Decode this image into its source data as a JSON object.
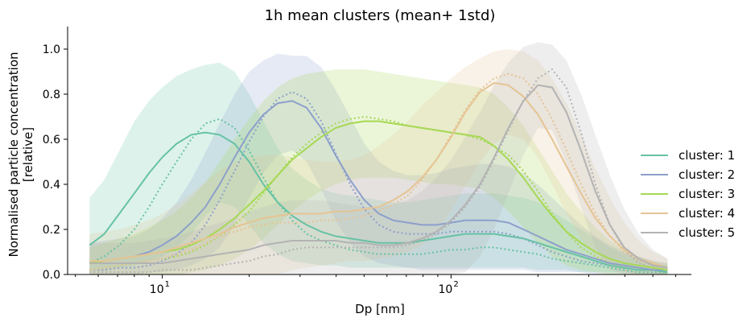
{
  "chart_data": {
    "type": "line",
    "title": "1h mean clusters (mean+ 1std)",
    "xlabel": "Dp [nm]",
    "ylabel_line1": "Normalised particle concentration",
    "ylabel_line2": "[relative]",
    "xscale": "log",
    "xlim": [
      4.7,
      680
    ],
    "ylim": [
      0,
      1.1
    ],
    "yticks": [
      0.0,
      0.2,
      0.4,
      0.6,
      0.8,
      1.0
    ],
    "ytick_labels": [
      "0.0",
      "0.2",
      "0.4",
      "0.6",
      "0.8",
      "1.0"
    ],
    "xtick_labels": [
      {
        "value": 10,
        "base": "10",
        "exp": "1"
      },
      {
        "value": 100,
        "base": "10",
        "exp": "2"
      }
    ],
    "grid": false,
    "legend_position": "right",
    "x": [
      5.6,
      6.3,
      7.1,
      8.0,
      9.0,
      10.0,
      11.2,
      12.6,
      14.1,
      15.8,
      17.8,
      20.0,
      22.4,
      25.1,
      28.2,
      31.6,
      35.5,
      39.8,
      44.7,
      50.1,
      56.2,
      63.1,
      70.8,
      79.4,
      89.1,
      100,
      112,
      126,
      141,
      158,
      178,
      200,
      224,
      251,
      282,
      316,
      355,
      398,
      447,
      501,
      562
    ],
    "series": [
      {
        "name": "cluster: 1",
        "color": "#66c2a5",
        "mean": [
          0.13,
          0.18,
          0.27,
          0.36,
          0.45,
          0.52,
          0.58,
          0.62,
          0.63,
          0.62,
          0.58,
          0.5,
          0.4,
          0.32,
          0.26,
          0.22,
          0.19,
          0.17,
          0.16,
          0.15,
          0.14,
          0.14,
          0.14,
          0.15,
          0.16,
          0.17,
          0.18,
          0.18,
          0.18,
          0.17,
          0.16,
          0.14,
          0.12,
          0.1,
          0.08,
          0.06,
          0.04,
          0.03,
          0.02,
          0.02,
          0.01
        ],
        "median": [
          0.05,
          0.08,
          0.13,
          0.2,
          0.3,
          0.4,
          0.5,
          0.6,
          0.67,
          0.69,
          0.65,
          0.55,
          0.43,
          0.32,
          0.24,
          0.18,
          0.15,
          0.13,
          0.11,
          0.1,
          0.09,
          0.09,
          0.09,
          0.09,
          0.1,
          0.11,
          0.11,
          0.12,
          0.12,
          0.11,
          0.1,
          0.09,
          0.07,
          0.06,
          0.05,
          0.04,
          0.03,
          0.02,
          0.01,
          0.01,
          0.01
        ],
        "upper": [
          0.34,
          0.42,
          0.55,
          0.68,
          0.77,
          0.83,
          0.88,
          0.91,
          0.93,
          0.94,
          0.9,
          0.8,
          0.68,
          0.56,
          0.47,
          0.42,
          0.38,
          0.36,
          0.35,
          0.34,
          0.33,
          0.32,
          0.32,
          0.33,
          0.34,
          0.35,
          0.36,
          0.36,
          0.36,
          0.35,
          0.34,
          0.32,
          0.28,
          0.24,
          0.2,
          0.16,
          0.12,
          0.09,
          0.07,
          0.05,
          0.04
        ],
        "lower": [
          0.02,
          0.02,
          0.03,
          0.04,
          0.06,
          0.08,
          0.12,
          0.18,
          0.26,
          0.32,
          0.3,
          0.22,
          0.14,
          0.09,
          0.06,
          0.05,
          0.04,
          0.04,
          0.03,
          0.03,
          0.03,
          0.03,
          0.03,
          0.03,
          0.03,
          0.03,
          0.03,
          0.03,
          0.03,
          0.03,
          0.03,
          0.02,
          0.02,
          0.02,
          0.01,
          0.01,
          0.01,
          0.01,
          0.0,
          0.0,
          0.0
        ]
      },
      {
        "name": "cluster: 2",
        "color": "#8da0cb",
        "mean": [
          0.05,
          0.06,
          0.07,
          0.08,
          0.1,
          0.13,
          0.17,
          0.23,
          0.3,
          0.4,
          0.52,
          0.63,
          0.71,
          0.76,
          0.77,
          0.74,
          0.65,
          0.53,
          0.42,
          0.33,
          0.27,
          0.24,
          0.23,
          0.22,
          0.22,
          0.23,
          0.24,
          0.24,
          0.24,
          0.23,
          0.2,
          0.17,
          0.14,
          0.11,
          0.09,
          0.07,
          0.05,
          0.04,
          0.03,
          0.02,
          0.02
        ],
        "median": [
          0.02,
          0.02,
          0.03,
          0.03,
          0.04,
          0.06,
          0.09,
          0.14,
          0.22,
          0.33,
          0.46,
          0.59,
          0.7,
          0.78,
          0.81,
          0.78,
          0.68,
          0.54,
          0.4,
          0.29,
          0.22,
          0.19,
          0.18,
          0.18,
          0.18,
          0.19,
          0.19,
          0.19,
          0.19,
          0.18,
          0.16,
          0.13,
          0.1,
          0.08,
          0.06,
          0.05,
          0.04,
          0.03,
          0.02,
          0.02,
          0.01
        ],
        "upper": [
          0.14,
          0.15,
          0.16,
          0.17,
          0.2,
          0.25,
          0.32,
          0.42,
          0.54,
          0.67,
          0.8,
          0.9,
          0.95,
          0.98,
          0.97,
          0.97,
          0.92,
          0.82,
          0.7,
          0.58,
          0.5,
          0.46,
          0.44,
          0.44,
          0.45,
          0.47,
          0.48,
          0.49,
          0.49,
          0.48,
          0.45,
          0.4,
          0.34,
          0.28,
          0.22,
          0.17,
          0.13,
          0.1,
          0.08,
          0.06,
          0.05
        ],
        "lower": [
          0.0,
          0.0,
          0.0,
          0.0,
          0.01,
          0.01,
          0.02,
          0.04,
          0.07,
          0.12,
          0.22,
          0.34,
          0.45,
          0.53,
          0.55,
          0.5,
          0.38,
          0.24,
          0.14,
          0.08,
          0.05,
          0.04,
          0.03,
          0.02,
          0.02,
          0.02,
          0.02,
          0.02,
          0.02,
          0.02,
          0.02,
          0.01,
          0.01,
          0.01,
          0.01,
          0.0,
          0.0,
          0.0,
          0.0,
          0.0,
          0.0
        ]
      },
      {
        "name": "cluster: 3",
        "color": "#a6d854",
        "mean": [
          0.05,
          0.06,
          0.07,
          0.08,
          0.09,
          0.1,
          0.11,
          0.13,
          0.16,
          0.2,
          0.25,
          0.31,
          0.37,
          0.44,
          0.51,
          0.56,
          0.61,
          0.65,
          0.67,
          0.68,
          0.68,
          0.67,
          0.66,
          0.65,
          0.64,
          0.63,
          0.62,
          0.61,
          0.57,
          0.51,
          0.43,
          0.34,
          0.26,
          0.19,
          0.14,
          0.1,
          0.07,
          0.05,
          0.04,
          0.03,
          0.02
        ],
        "median": [
          0.02,
          0.03,
          0.04,
          0.05,
          0.06,
          0.07,
          0.08,
          0.1,
          0.13,
          0.17,
          0.22,
          0.28,
          0.36,
          0.44,
          0.52,
          0.58,
          0.63,
          0.67,
          0.69,
          0.7,
          0.69,
          0.68,
          0.66,
          0.65,
          0.64,
          0.63,
          0.62,
          0.6,
          0.57,
          0.53,
          0.46,
          0.37,
          0.27,
          0.19,
          0.12,
          0.08,
          0.05,
          0.03,
          0.02,
          0.02,
          0.01
        ],
        "upper": [
          0.12,
          0.14,
          0.16,
          0.18,
          0.21,
          0.24,
          0.28,
          0.34,
          0.41,
          0.5,
          0.6,
          0.69,
          0.77,
          0.83,
          0.87,
          0.89,
          0.9,
          0.91,
          0.91,
          0.91,
          0.9,
          0.89,
          0.88,
          0.87,
          0.86,
          0.85,
          0.84,
          0.83,
          0.8,
          0.74,
          0.66,
          0.56,
          0.46,
          0.36,
          0.28,
          0.21,
          0.15,
          0.11,
          0.08,
          0.06,
          0.05
        ],
        "lower": [
          0.0,
          0.0,
          0.0,
          0.0,
          0.0,
          0.0,
          0.0,
          0.01,
          0.02,
          0.04,
          0.07,
          0.11,
          0.16,
          0.22,
          0.28,
          0.33,
          0.37,
          0.4,
          0.42,
          0.43,
          0.43,
          0.43,
          0.42,
          0.41,
          0.4,
          0.4,
          0.39,
          0.38,
          0.34,
          0.28,
          0.21,
          0.14,
          0.08,
          0.04,
          0.02,
          0.01,
          0.0,
          0.0,
          0.0,
          0.0,
          0.0
        ]
      },
      {
        "name": "cluster: 4",
        "color": "#e5c494",
        "mean": [
          0.06,
          0.06,
          0.07,
          0.08,
          0.09,
          0.1,
          0.12,
          0.14,
          0.16,
          0.18,
          0.21,
          0.23,
          0.25,
          0.26,
          0.27,
          0.27,
          0.27,
          0.28,
          0.28,
          0.29,
          0.3,
          0.33,
          0.37,
          0.43,
          0.51,
          0.61,
          0.72,
          0.81,
          0.85,
          0.84,
          0.79,
          0.71,
          0.6,
          0.48,
          0.36,
          0.25,
          0.17,
          0.11,
          0.07,
          0.05,
          0.03
        ],
        "median": [
          0.02,
          0.03,
          0.04,
          0.05,
          0.06,
          0.07,
          0.09,
          0.11,
          0.14,
          0.17,
          0.19,
          0.21,
          0.22,
          0.23,
          0.23,
          0.23,
          0.24,
          0.24,
          0.25,
          0.26,
          0.28,
          0.31,
          0.35,
          0.42,
          0.51,
          0.62,
          0.73,
          0.82,
          0.87,
          0.89,
          0.87,
          0.8,
          0.69,
          0.55,
          0.4,
          0.27,
          0.17,
          0.1,
          0.06,
          0.04,
          0.03
        ],
        "upper": [
          0.18,
          0.19,
          0.2,
          0.22,
          0.24,
          0.27,
          0.31,
          0.36,
          0.41,
          0.46,
          0.5,
          0.52,
          0.53,
          0.53,
          0.52,
          0.51,
          0.5,
          0.5,
          0.51,
          0.53,
          0.57,
          0.62,
          0.68,
          0.75,
          0.81,
          0.87,
          0.92,
          0.96,
          0.99,
          1.0,
          0.99,
          0.95,
          0.87,
          0.76,
          0.62,
          0.47,
          0.34,
          0.23,
          0.15,
          0.1,
          0.07
        ],
        "lower": [
          0.0,
          0.0,
          0.0,
          0.0,
          0.0,
          0.0,
          0.0,
          0.0,
          0.0,
          0.0,
          0.0,
          0.0,
          0.0,
          0.0,
          0.02,
          0.03,
          0.04,
          0.05,
          0.06,
          0.06,
          0.07,
          0.08,
          0.1,
          0.13,
          0.19,
          0.28,
          0.39,
          0.5,
          0.58,
          0.62,
          0.6,
          0.52,
          0.4,
          0.27,
          0.16,
          0.08,
          0.03,
          0.01,
          0.0,
          0.0,
          0.0
        ]
      },
      {
        "name": "cluster: 5",
        "color": "#b3b3b3",
        "mean": [
          0.05,
          0.05,
          0.05,
          0.05,
          0.05,
          0.05,
          0.06,
          0.07,
          0.08,
          0.09,
          0.1,
          0.11,
          0.13,
          0.14,
          0.15,
          0.15,
          0.15,
          0.15,
          0.14,
          0.14,
          0.13,
          0.13,
          0.14,
          0.16,
          0.19,
          0.24,
          0.31,
          0.4,
          0.52,
          0.65,
          0.77,
          0.84,
          0.83,
          0.72,
          0.55,
          0.37,
          0.22,
          0.12,
          0.07,
          0.04,
          0.03
        ],
        "median": [
          0.01,
          0.01,
          0.01,
          0.01,
          0.01,
          0.02,
          0.02,
          0.02,
          0.03,
          0.04,
          0.05,
          0.06,
          0.08,
          0.09,
          0.11,
          0.12,
          0.12,
          0.12,
          0.12,
          0.12,
          0.12,
          0.12,
          0.13,
          0.15,
          0.18,
          0.23,
          0.3,
          0.39,
          0.51,
          0.64,
          0.77,
          0.87,
          0.91,
          0.83,
          0.63,
          0.4,
          0.22,
          0.11,
          0.05,
          0.03,
          0.02
        ],
        "upper": [
          0.14,
          0.14,
          0.14,
          0.14,
          0.15,
          0.16,
          0.17,
          0.19,
          0.21,
          0.23,
          0.25,
          0.28,
          0.3,
          0.32,
          0.33,
          0.33,
          0.33,
          0.32,
          0.31,
          0.3,
          0.3,
          0.31,
          0.33,
          0.37,
          0.43,
          0.51,
          0.61,
          0.72,
          0.84,
          0.94,
          1.01,
          1.03,
          1.02,
          0.95,
          0.8,
          0.62,
          0.44,
          0.29,
          0.18,
          0.11,
          0.07
        ],
        "lower": [
          0.0,
          0.0,
          0.0,
          0.0,
          0.0,
          0.0,
          0.0,
          0.0,
          0.0,
          0.0,
          0.0,
          0.0,
          0.0,
          0.0,
          0.0,
          0.0,
          0.0,
          0.0,
          0.0,
          0.0,
          0.0,
          0.0,
          0.0,
          0.0,
          0.0,
          0.0,
          0.01,
          0.08,
          0.2,
          0.36,
          0.53,
          0.65,
          0.64,
          0.49,
          0.3,
          0.12,
          0.02,
          0.0,
          0.0,
          0.0,
          0.0
        ]
      }
    ]
  }
}
